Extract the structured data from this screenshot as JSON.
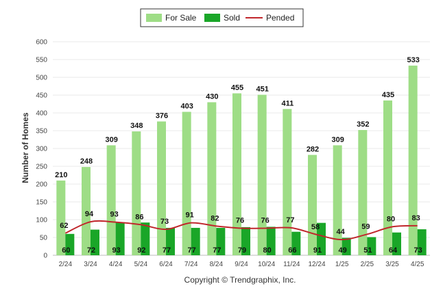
{
  "chart_data": {
    "type": "bar",
    "ylabel": "Number of Homes",
    "ylim": [
      0,
      600
    ],
    "yticks": [
      0,
      50,
      100,
      150,
      200,
      250,
      300,
      350,
      400,
      450,
      500,
      550,
      600
    ],
    "grid": true,
    "legend_position": "top-center",
    "categories": [
      "2/24",
      "3/24",
      "4/24",
      "5/24",
      "6/24",
      "7/24",
      "8/24",
      "9/24",
      "10/24",
      "11/24",
      "12/24",
      "1/25",
      "2/25",
      "3/25",
      "4/25"
    ],
    "series": [
      {
        "name": "For Sale",
        "kind": "bar",
        "color": "#9edd86",
        "values": [
          210,
          248,
          309,
          348,
          376,
          403,
          430,
          455,
          451,
          411,
          282,
          309,
          352,
          435,
          533
        ]
      },
      {
        "name": "Sold",
        "kind": "bar",
        "color": "#1aa628",
        "values": [
          60,
          72,
          93,
          92,
          77,
          77,
          77,
          79,
          80,
          66,
          91,
          49,
          51,
          64,
          73
        ]
      },
      {
        "name": "Pended",
        "kind": "line",
        "color": "#c0262b",
        "values": [
          62,
          94,
          93,
          86,
          73,
          91,
          82,
          76,
          76,
          77,
          58,
          44,
          59,
          80,
          83
        ]
      }
    ]
  },
  "footer": {
    "copyright": "Copyright © Trendgraphix, Inc."
  }
}
